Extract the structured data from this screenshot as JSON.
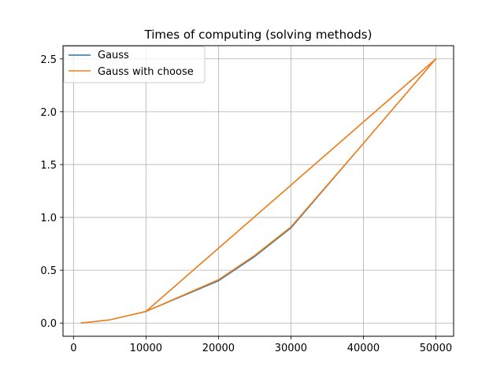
{
  "chart_data": {
    "type": "line",
    "title": "Times of computing (solving methods)",
    "xlabel": "",
    "ylabel": "",
    "xlim": [
      -1450,
      52450
    ],
    "ylim": [
      -0.125,
      2.625
    ],
    "xticks": [
      0,
      10000,
      20000,
      30000,
      40000,
      50000
    ],
    "xtick_labels": [
      "0",
      "10000",
      "20000",
      "30000",
      "40000",
      "50000"
    ],
    "yticks": [
      0.0,
      0.5,
      1.0,
      1.5,
      2.0,
      2.5
    ],
    "ytick_labels": [
      "0.0",
      "0.5",
      "1.0",
      "1.5",
      "2.0",
      "2.5"
    ],
    "grid": true,
    "legend_position": "top-left",
    "series": [
      {
        "name": "Gauss",
        "color": "#1f77b4",
        "x": [
          1000,
          5000,
          10000,
          20000,
          25000,
          30000,
          40000,
          50000,
          10000
        ],
        "y": [
          0.0,
          0.03,
          0.11,
          0.4,
          0.63,
          0.9,
          1.7,
          2.5,
          0.11
        ]
      },
      {
        "name": "Gauss with choose",
        "color": "#ff7f0e",
        "x": [
          1000,
          5000,
          10000,
          20000,
          25000,
          30000,
          40000,
          50000,
          10000
        ],
        "y": [
          0.0,
          0.03,
          0.11,
          0.41,
          0.64,
          0.91,
          1.7,
          2.5,
          0.11
        ]
      }
    ]
  }
}
